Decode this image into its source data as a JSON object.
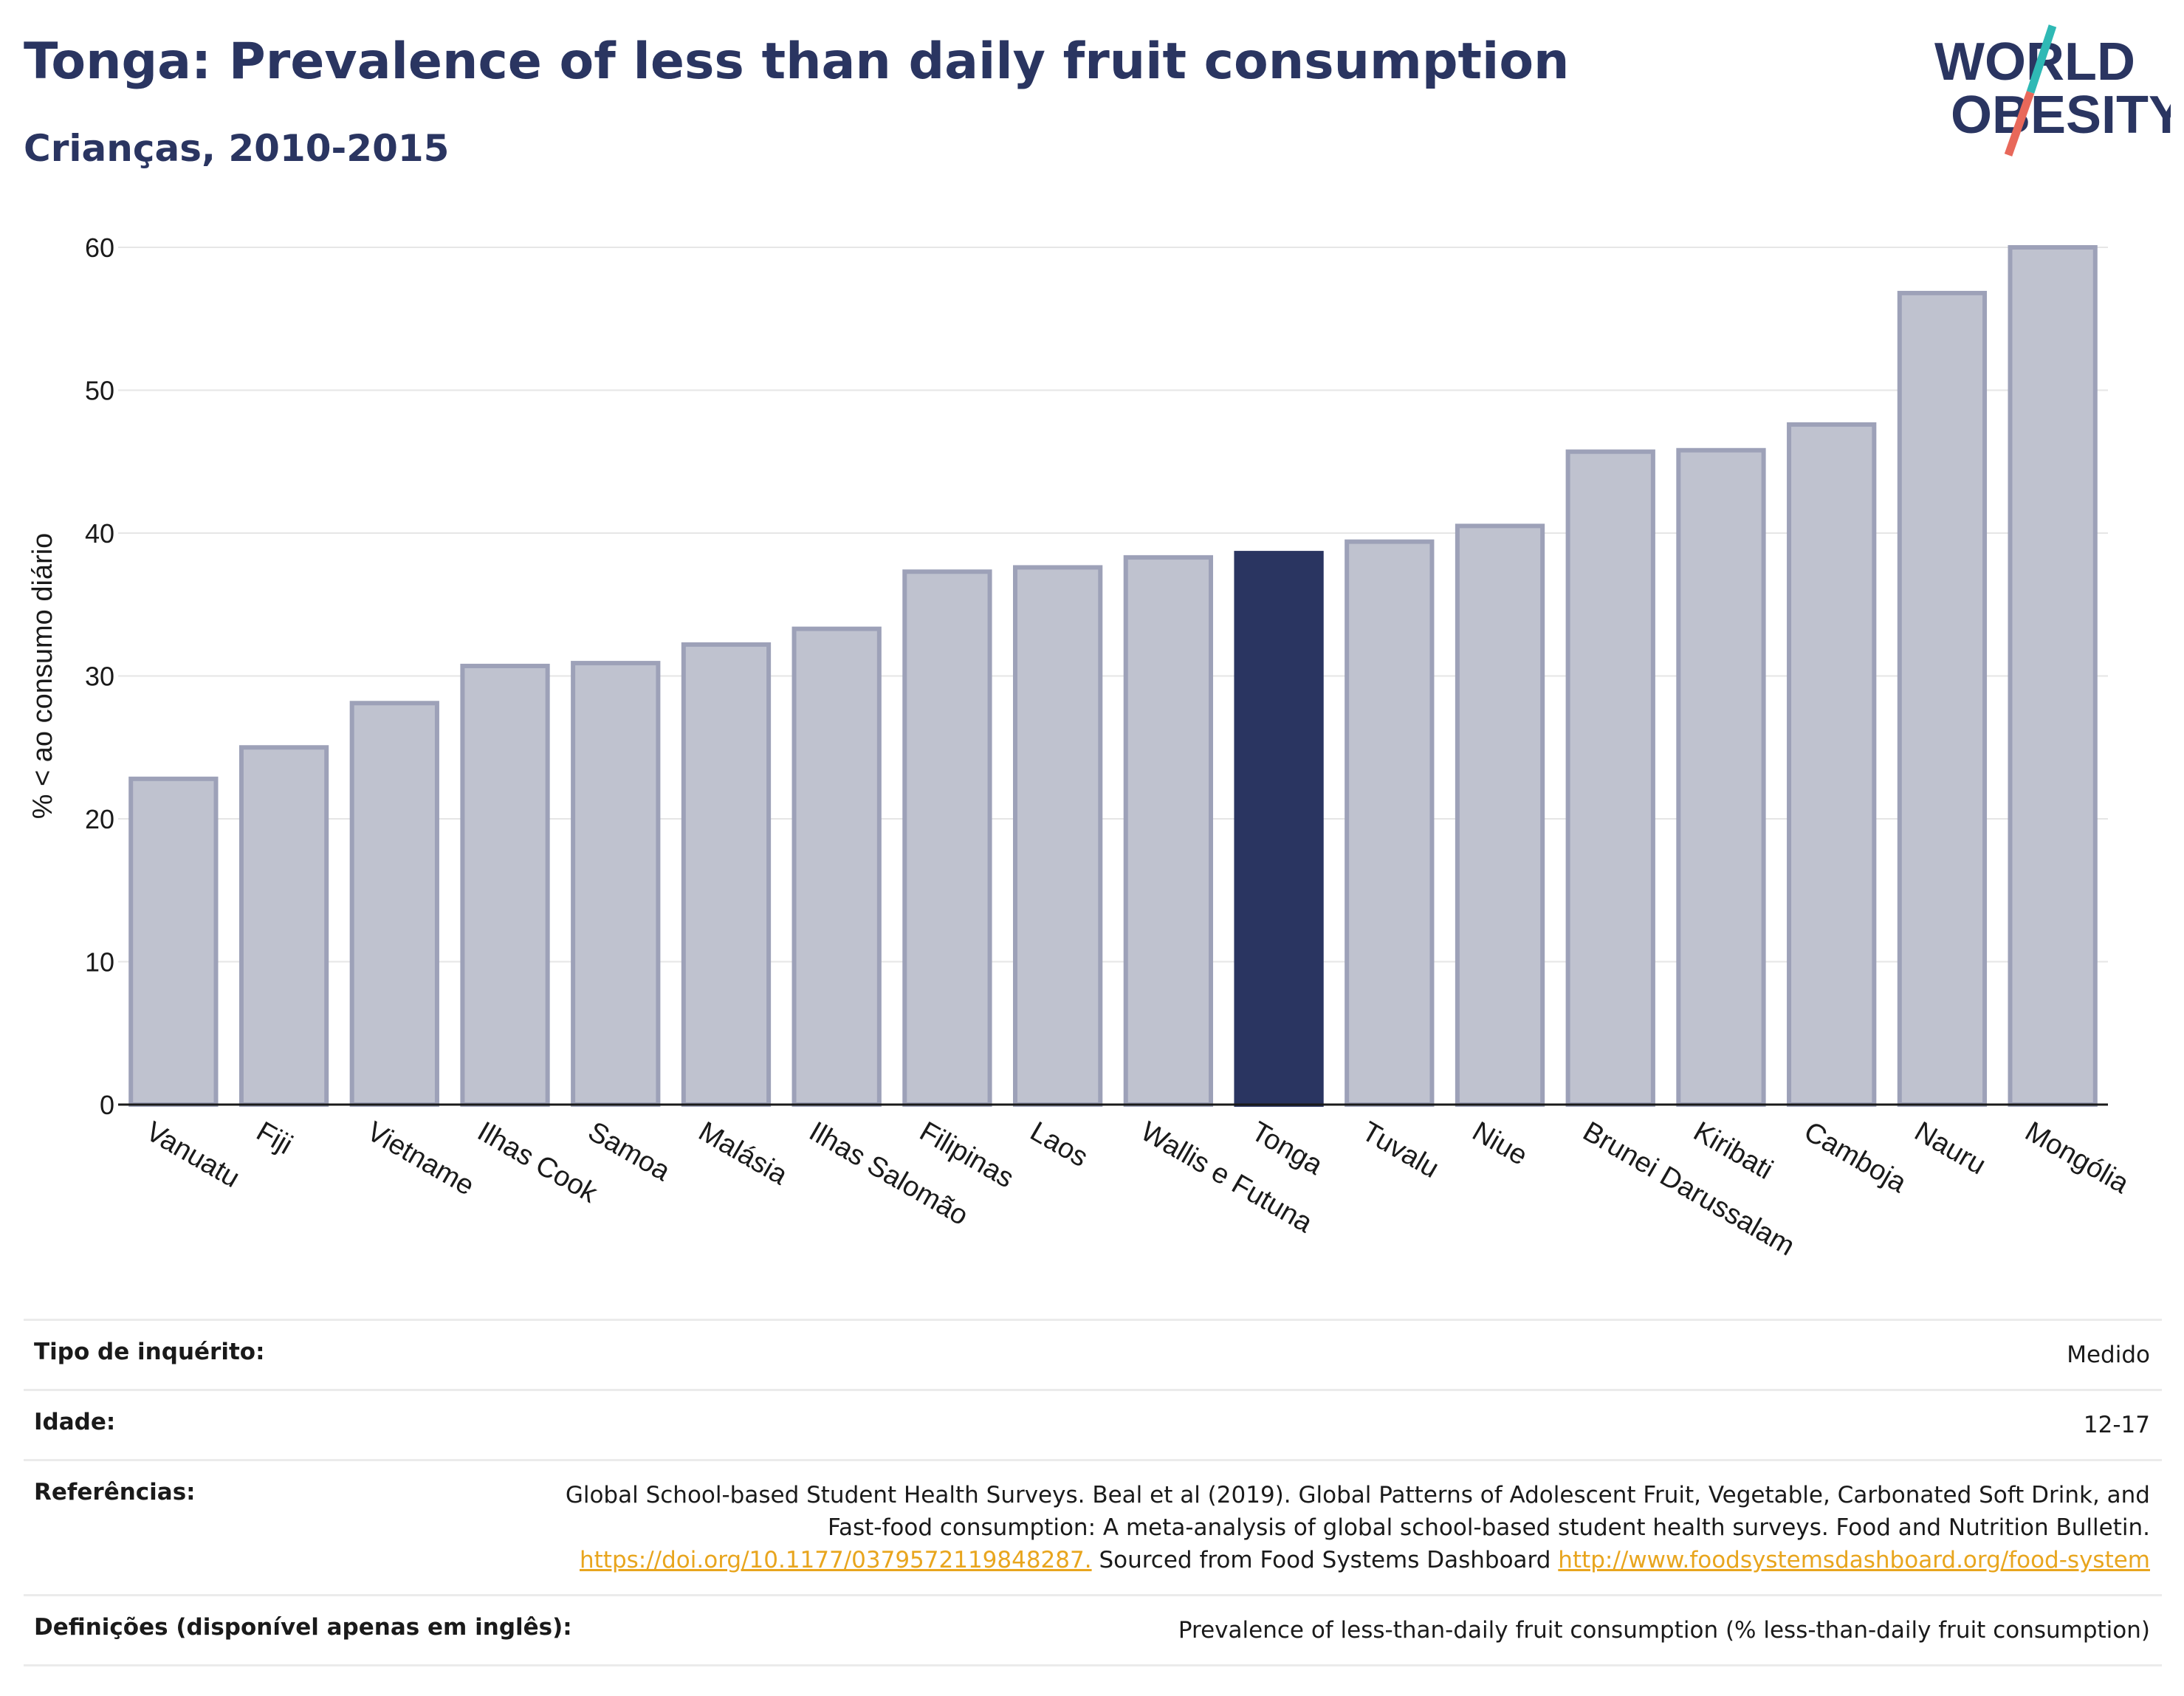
{
  "header": {
    "title": "Tonga: Prevalence of less than daily fruit consumption",
    "subtitle": "Crianças, 2010-2015",
    "logo_line1": "WORLD",
    "logo_line2": "OBESITY"
  },
  "colors": {
    "bar": "#bfc2cf",
    "bar_border": "#9da1b8",
    "highlight": "#2a3561",
    "title": "#2a3561",
    "link": "#e8a51e",
    "logo_teal": "#2fb9b5",
    "logo_red": "#e8685a"
  },
  "chart_data": {
    "type": "bar",
    "ylabel": "% < ao consumo diário",
    "ylim": [
      0,
      60
    ],
    "yticks": [
      0,
      10,
      20,
      30,
      40,
      50,
      60
    ],
    "grid": true,
    "highlight": "Tonga",
    "categories": [
      "Vanuatu",
      "Fiji",
      "Vietname",
      "Ilhas Cook",
      "Samoa",
      "Malásia",
      "Ilhas Salomão",
      "Filipinas",
      "Laos",
      "Wallis e Futuna",
      "Tonga",
      "Tuvalu",
      "Niue",
      "Brunei Darussalam",
      "Kiribati",
      "Camboja",
      "Nauru",
      "Mongólia"
    ],
    "values": [
      22.8,
      25.0,
      28.1,
      30.7,
      30.9,
      32.2,
      33.3,
      37.3,
      37.6,
      38.3,
      38.6,
      39.4,
      40.5,
      45.7,
      45.8,
      47.6,
      56.8,
      60.0
    ]
  },
  "metadata": [
    {
      "label": "Tipo de inquérito:",
      "value": "Medido"
    },
    {
      "label": "Idade:",
      "value": "12-17"
    },
    {
      "label": "Referências:",
      "value_text": "Global School-based Student Health Surveys. Beal et al (2019). Global Patterns of Adolescent Fruit, Vegetable, Carbonated Soft Drink, and Fast-food consumption: A meta-analysis of global school-based student health surveys. Food and Nutrition Bulletin.",
      "link1": "https://doi.org/10.1177/0379572119848287.",
      "middle": "Sourced from Food Systems Dashboard",
      "link2": "http://www.foodsystemsdashboard.org/food-system"
    },
    {
      "label": "Definições (disponível apenas em inglês):",
      "value": "Prevalence of less-than-daily fruit consumption (% less-than-daily fruit consumption)"
    }
  ]
}
